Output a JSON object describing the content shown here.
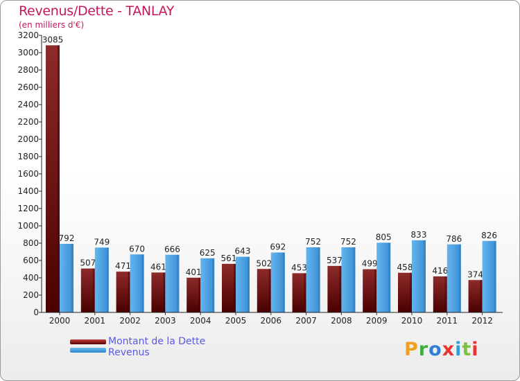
{
  "title": "Revenus/Dette - TANLAY",
  "subtitle": "(en milliers d'€)",
  "chart_data": {
    "type": "bar",
    "title": "Revenus/Dette - TANLAY",
    "subtitle": "(en milliers d'€)",
    "xlabel": "",
    "ylabel": "",
    "ylim": [
      0,
      3200
    ],
    "yticks": [
      0,
      200,
      400,
      600,
      800,
      1000,
      1200,
      1400,
      1600,
      1800,
      2000,
      2200,
      2400,
      2600,
      2800,
      3000,
      3200
    ],
    "grid": false,
    "legend_position": "bottom-left",
    "categories": [
      "2000",
      "2001",
      "2002",
      "2003",
      "2004",
      "2005",
      "2006",
      "2007",
      "2008",
      "2009",
      "2010",
      "2011",
      "2012"
    ],
    "series": [
      {
        "name": "Montant de la Dette",
        "color": "#8b1a1a",
        "values": [
          3085,
          507,
          471,
          461,
          401,
          561,
          502,
          453,
          537,
          499,
          458,
          416,
          374
        ]
      },
      {
        "name": "Revenus",
        "color": "#3b97dc",
        "values": [
          792,
          749,
          670,
          666,
          625,
          643,
          692,
          752,
          752,
          805,
          833,
          786,
          826
        ]
      }
    ]
  },
  "legend": {
    "dette_label": "Montant de la Dette",
    "revenus_label": "Revenus"
  },
  "logo": {
    "p": "P",
    "r": "r",
    "o": "o",
    "x": "x",
    "i1": "i",
    "t": "t",
    "i2": "i"
  }
}
